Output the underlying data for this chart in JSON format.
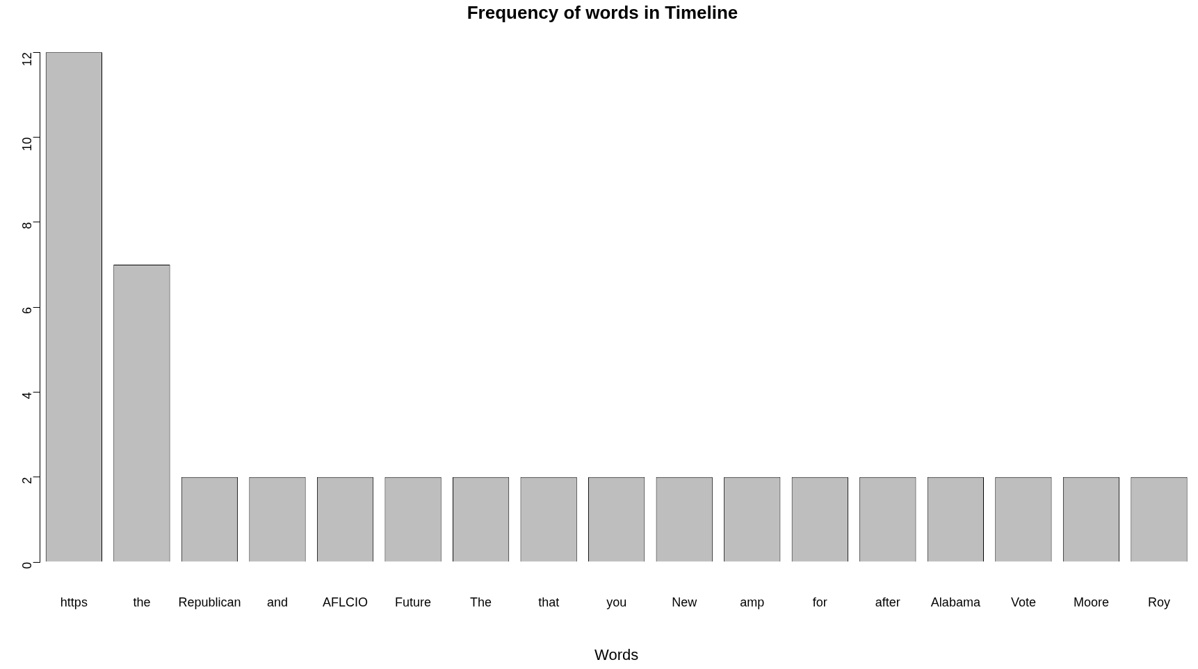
{
  "chart_data": {
    "type": "bar",
    "title": "Frequency of words in Timeline",
    "xlabel": "Words",
    "categories": [
      "https",
      "the",
      "Republican",
      "and",
      "AFLCIO",
      "Future",
      "The",
      "that",
      "you",
      "New",
      "amp",
      "for",
      "after",
      "Alabama",
      "Vote",
      "Moore",
      "Roy"
    ],
    "values": [
      12,
      7,
      2,
      2,
      2,
      2,
      2,
      2,
      2,
      2,
      2,
      2,
      2,
      2,
      2,
      2,
      2
    ],
    "color": "#bebebe",
    "ylim": [
      0,
      12
    ],
    "yticks": [
      0,
      2,
      4,
      6,
      8,
      10,
      12
    ]
  }
}
